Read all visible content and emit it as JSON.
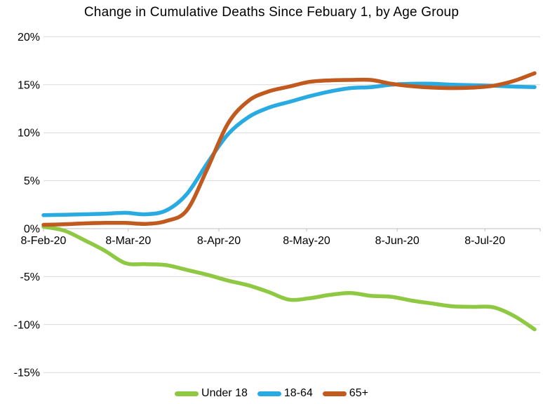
{
  "title": "Change in Cumulative Deaths Since Febuary 1, by Age Group",
  "colors": {
    "background": "#FFFFFF",
    "gridline": "#D9D9D9",
    "axis_line": "#BFBFBF",
    "text": "#000000",
    "green": "#8FC843",
    "blue": "#29ABE2",
    "orange": "#C05A1E"
  },
  "chart_data": {
    "type": "line",
    "title": "Change in Cumulative Deaths Since Febuary 1, by Age Group",
    "xlabel": "",
    "ylabel": "",
    "ylim": [
      -15,
      20
    ],
    "y_tick_step": 5,
    "y_ticks": [
      {
        "label": "20%",
        "value": 20
      },
      {
        "label": "15%",
        "value": 15
      },
      {
        "label": "10%",
        "value": 10
      },
      {
        "label": "5%",
        "value": 5
      },
      {
        "label": "0%",
        "value": 0
      },
      {
        "label": "-5%",
        "value": -5
      },
      {
        "label": "-10%",
        "value": -10
      },
      {
        "label": "-15%",
        "value": -15
      }
    ],
    "x_axis_ticks": [
      {
        "label": "8-Feb-20",
        "day": 0
      },
      {
        "label": "8-Mar-20",
        "day": 29
      },
      {
        "label": "8-Apr-20",
        "day": 60
      },
      {
        "label": "8-May-20",
        "day": 90
      },
      {
        "label": "8-Jun-20",
        "day": 121
      },
      {
        "label": "8-Jul-20",
        "day": 151
      }
    ],
    "grid": "horizontal-only",
    "legend_position": "bottom-center",
    "smoothed_lines": true,
    "x_point_dates": [
      "8-Feb",
      "15-Feb",
      "22-Feb",
      "29-Feb",
      "7-Mar",
      "14-Mar",
      "21-Mar",
      "28-Mar",
      "4-Apr",
      "11-Apr",
      "18-Apr",
      "25-Apr",
      "2-May",
      "9-May",
      "16-May",
      "23-May",
      "30-May",
      "6-Jun",
      "13-Jun",
      "20-Jun",
      "27-Jun",
      "4-Jul",
      "11-Jul",
      "18-Jul",
      "25-Jul"
    ],
    "x_point_days": [
      0,
      7,
      14,
      21,
      28,
      35,
      42,
      49,
      56,
      63,
      70,
      77,
      84,
      91,
      98,
      105,
      112,
      119,
      126,
      133,
      140,
      147,
      154,
      161,
      168
    ],
    "series": [
      {
        "name": "Under 18",
        "color": "#8FC843",
        "values": [
          0.2,
          -0.2,
          -1.2,
          -2.3,
          -3.6,
          -3.7,
          -3.8,
          -4.3,
          -4.8,
          -5.4,
          -5.9,
          -6.6,
          -7.4,
          -7.25,
          -6.9,
          -6.7,
          -7.0,
          -7.1,
          -7.5,
          -7.8,
          -8.1,
          -8.15,
          -8.2,
          -9.1,
          -10.5
        ]
      },
      {
        "name": "18-64",
        "color": "#29ABE2",
        "values": [
          1.4,
          1.45,
          1.5,
          1.55,
          1.65,
          1.5,
          1.9,
          3.6,
          6.8,
          9.8,
          11.6,
          12.6,
          13.2,
          13.8,
          14.3,
          14.65,
          14.75,
          15.0,
          15.1,
          15.1,
          15.0,
          14.95,
          14.9,
          14.8,
          14.75
        ]
      },
      {
        "name": "65+",
        "color": "#C05A1E",
        "values": [
          0.4,
          0.45,
          0.55,
          0.6,
          0.6,
          0.5,
          0.8,
          1.9,
          6.2,
          10.9,
          13.3,
          14.3,
          14.8,
          15.3,
          15.45,
          15.5,
          15.5,
          15.1,
          14.85,
          14.7,
          14.65,
          14.7,
          14.9,
          15.4,
          16.2
        ]
      }
    ]
  }
}
